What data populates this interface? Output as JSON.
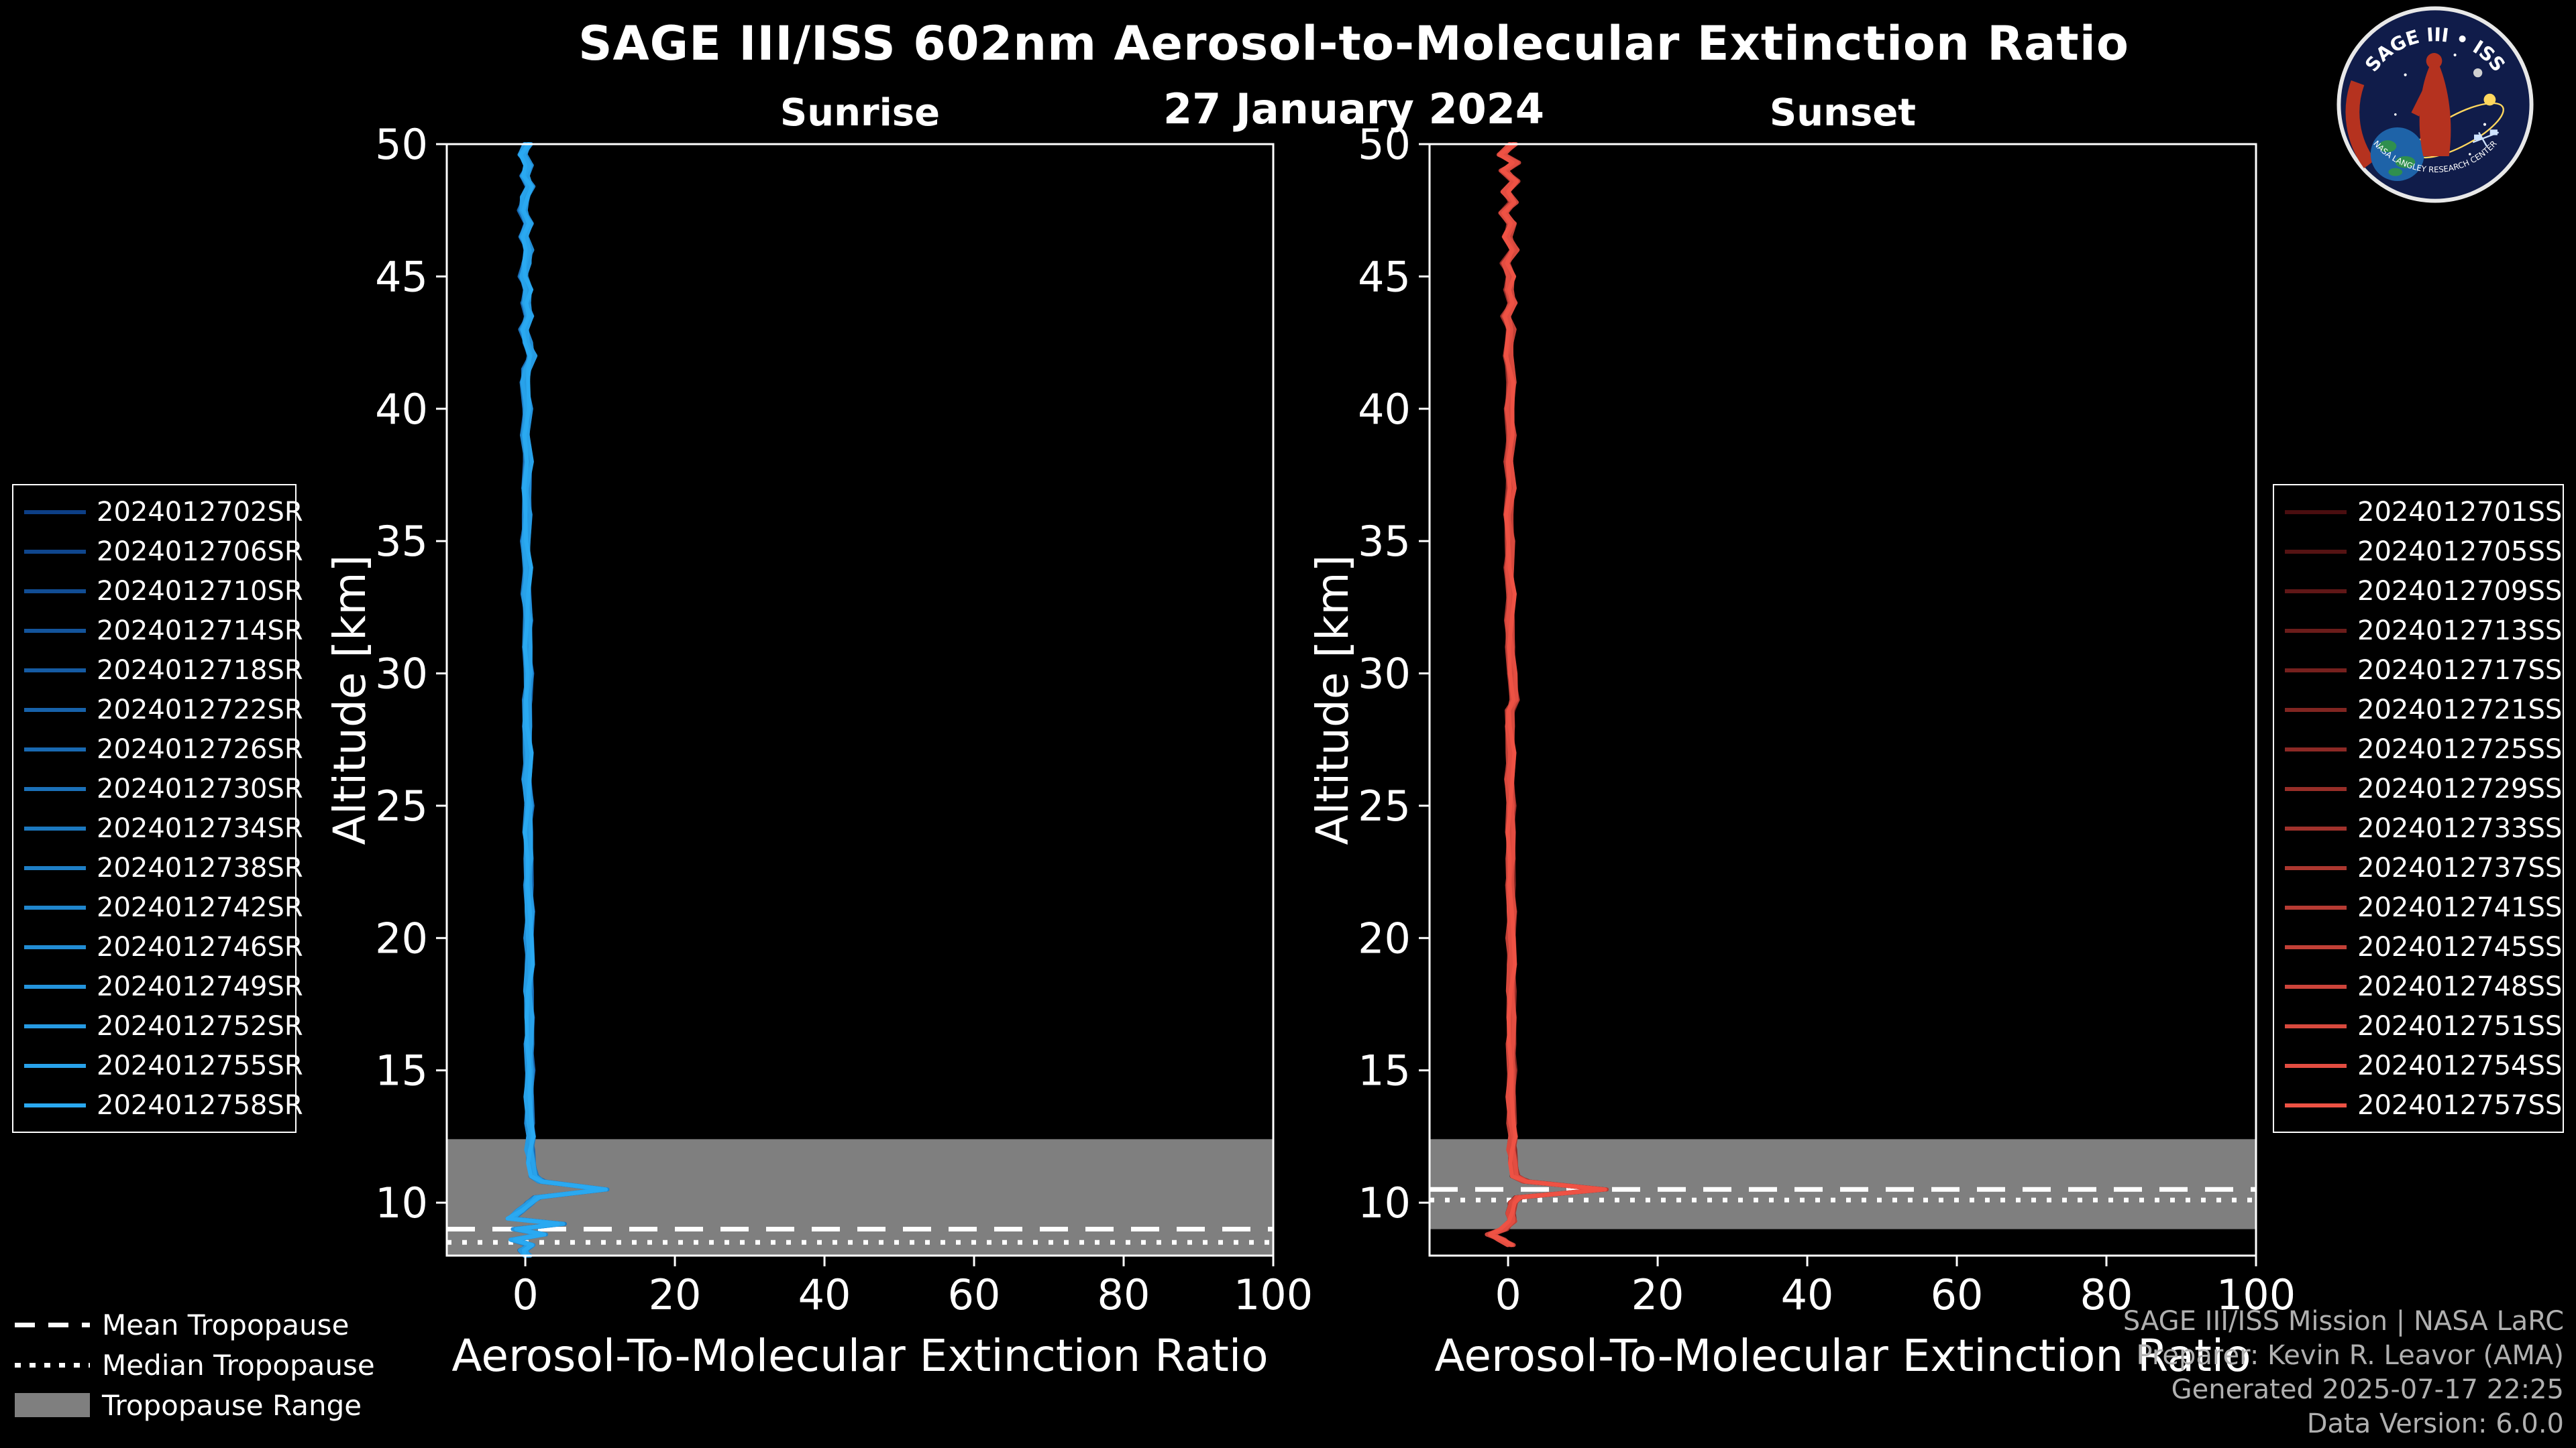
{
  "header": {
    "title": "SAGE III/ISS 602nm Aerosol-to-Molecular Extinction Ratio",
    "date": "27 January 2024"
  },
  "logo": {
    "title": "SAGE III • ISS",
    "subtitle": "NASA LANGLEY RESEARCH CENTER"
  },
  "tropopause_legend": {
    "mean": "Mean Tropopause",
    "median": "Median Tropopause",
    "range": "Tropopause Range"
  },
  "footer": {
    "lines": [
      "SAGE III/ISS Mission | NASA LaRC",
      "Preparer: Kevin R. Leavor (AMA)",
      "Generated 2025-07-17 22:25",
      "Data Version: 6.0.0"
    ]
  },
  "colors": {
    "background": "#000000",
    "sunrise_first": "#0d3f86",
    "sunrise_last": "#2aa9f1",
    "sunset_first": "#4a0e10",
    "sunset_last": "#ee5244",
    "tropopause_band": "#7f7f7f",
    "tropopause_lines": "#ffffff",
    "frame": "#ffffff"
  },
  "chart_data": [
    {
      "type": "line",
      "title": "Sunrise",
      "xlabel": "Aerosol-To-Molecular Extinction Ratio",
      "ylabel": "Altitude [km]",
      "xlim": [
        -10.5,
        100
      ],
      "ylim": [
        8,
        50
      ],
      "xticks": [
        0,
        20,
        40,
        60,
        80,
        100
      ],
      "yticks": [
        10,
        15,
        20,
        25,
        30,
        35,
        40,
        45,
        50
      ],
      "legend_position": "outside-left",
      "grid": false,
      "series_names": [
        "2024012702SR",
        "2024012706SR",
        "2024012710SR",
        "2024012714SR",
        "2024012718SR",
        "2024012722SR",
        "2024012726SR",
        "2024012730SR",
        "2024012734SR",
        "2024012738SR",
        "2024012742SR",
        "2024012746SR",
        "2024012749SR",
        "2024012752SR",
        "2024012755SR",
        "2024012758SR"
      ],
      "profile_alt_km_vs_ratio": [
        [
          50,
          0.3
        ],
        [
          49.6,
          -0.4
        ],
        [
          49.2,
          0.5
        ],
        [
          48.8,
          -0.1
        ],
        [
          48.4,
          0.6
        ],
        [
          48,
          0
        ],
        [
          47.5,
          -0.4
        ],
        [
          47,
          0.4
        ],
        [
          46.5,
          -0.2
        ],
        [
          46,
          0.5
        ],
        [
          45.5,
          0.1
        ],
        [
          45,
          -0.3
        ],
        [
          44.5,
          0.4
        ],
        [
          44,
          0
        ],
        [
          43.5,
          0.5
        ],
        [
          43,
          -0.2
        ],
        [
          42.5,
          0.3
        ],
        [
          42,
          0.9
        ],
        [
          41.5,
          0.2
        ],
        [
          41,
          -0.1
        ],
        [
          40,
          0.3
        ],
        [
          39,
          0
        ],
        [
          38,
          0.4
        ],
        [
          37,
          0.1
        ],
        [
          36,
          0.3
        ],
        [
          35,
          0
        ],
        [
          34,
          0.3
        ],
        [
          33,
          0.1
        ],
        [
          32,
          0.4
        ],
        [
          31,
          0.2
        ],
        [
          30,
          0.5
        ],
        [
          29,
          0.3
        ],
        [
          28,
          0.2
        ],
        [
          27,
          0.4
        ],
        [
          26,
          0.2
        ],
        [
          25,
          0.5
        ],
        [
          24,
          0.3
        ],
        [
          23,
          0.5
        ],
        [
          22,
          0.4
        ],
        [
          21,
          0.6
        ],
        [
          20,
          0.5
        ],
        [
          19,
          0.6
        ],
        [
          18,
          0.4
        ],
        [
          17,
          0.6
        ],
        [
          16,
          0.5
        ],
        [
          15,
          0.6
        ],
        [
          14,
          0.5
        ],
        [
          13,
          0.6
        ],
        [
          12.5,
          0.7
        ],
        [
          12,
          0.6
        ],
        [
          11.5,
          0.8
        ],
        [
          11,
          1.1
        ],
        [
          10.8,
          2.2
        ],
        [
          10.5,
          10.6
        ],
        [
          10.2,
          1.6
        ],
        [
          10,
          0.6
        ],
        [
          9.7,
          -0.6
        ],
        [
          9.4,
          -2.0
        ],
        [
          9.2,
          4.8
        ],
        [
          9.0,
          -1.2
        ],
        [
          8.8,
          2.3
        ],
        [
          8.6,
          -1.6
        ],
        [
          8.4,
          0.7
        ],
        [
          8.2,
          -0.3
        ],
        [
          8.0,
          0.2
        ]
      ],
      "tropopause": {
        "mean_km": 9.0,
        "median_km": 8.5,
        "range_km": [
          8.0,
          12.4
        ]
      }
    },
    {
      "type": "line",
      "title": "Sunset",
      "xlabel": "Aerosol-To-Molecular Extinction Ratio",
      "ylabel": "Altitude [km]",
      "xlim": [
        -10.5,
        100
      ],
      "ylim": [
        8,
        50
      ],
      "xticks": [
        0,
        20,
        40,
        60,
        80,
        100
      ],
      "yticks": [
        10,
        15,
        20,
        25,
        30,
        35,
        40,
        45,
        50
      ],
      "legend_position": "outside-right",
      "grid": false,
      "series_names": [
        "2024012701SS",
        "2024012705SS",
        "2024012709SS",
        "2024012713SS",
        "2024012717SS",
        "2024012721SS",
        "2024012725SS",
        "2024012729SS",
        "2024012733SS",
        "2024012737SS",
        "2024012741SS",
        "2024012745SS",
        "2024012748SS",
        "2024012751SS",
        "2024012754SS",
        "2024012757SS"
      ],
      "profile_alt_km_vs_ratio": [
        [
          50,
          0.6
        ],
        [
          49.6,
          -0.9
        ],
        [
          49.3,
          1.1
        ],
        [
          49,
          -0.6
        ],
        [
          48.6,
          0.9
        ],
        [
          48.2,
          -0.3
        ],
        [
          47.8,
          0.7
        ],
        [
          47.4,
          -0.7
        ],
        [
          47,
          0.5
        ],
        [
          46.5,
          -0.1
        ],
        [
          46,
          0.8
        ],
        [
          45.5,
          -0.4
        ],
        [
          45,
          0.4
        ],
        [
          44.5,
          0
        ],
        [
          44,
          0.6
        ],
        [
          43.5,
          -0.3
        ],
        [
          43,
          0.4
        ],
        [
          42,
          0
        ],
        [
          41,
          0.5
        ],
        [
          40,
          0.1
        ],
        [
          39,
          0.4
        ],
        [
          38,
          0.1
        ],
        [
          37,
          0.4
        ],
        [
          36,
          0
        ],
        [
          35,
          0.3
        ],
        [
          34,
          0.1
        ],
        [
          33,
          0.4
        ],
        [
          32,
          0.2
        ],
        [
          31,
          0.3
        ],
        [
          30,
          0.5
        ],
        [
          29,
          0.9
        ],
        [
          28.6,
          0.3
        ],
        [
          28,
          0.2
        ],
        [
          27,
          0.4
        ],
        [
          26,
          0.2
        ],
        [
          25,
          0.4
        ],
        [
          24,
          0.3
        ],
        [
          23,
          0.4
        ],
        [
          22,
          0.3
        ],
        [
          21,
          0.5
        ],
        [
          20,
          0.4
        ],
        [
          19,
          0.5
        ],
        [
          18,
          0.4
        ],
        [
          17,
          0.5
        ],
        [
          16,
          0.4
        ],
        [
          15,
          0.5
        ],
        [
          14,
          0.4
        ],
        [
          13,
          0.5
        ],
        [
          12.5,
          0.6
        ],
        [
          12,
          0.5
        ],
        [
          11.5,
          0.7
        ],
        [
          11,
          0.9
        ],
        [
          10.8,
          2.4
        ],
        [
          10.5,
          12.8
        ],
        [
          10.2,
          1.4
        ],
        [
          10,
          0.6
        ],
        [
          9.6,
          0.4
        ],
        [
          9.3,
          0.5
        ],
        [
          9.0,
          -0.6
        ],
        [
          8.8,
          -2.4
        ],
        [
          8.6,
          -0.9
        ],
        [
          8.4,
          0.3
        ]
      ],
      "tropopause": {
        "mean_km": 10.5,
        "median_km": 10.1,
        "range_km": [
          9.0,
          12.4
        ]
      }
    }
  ]
}
